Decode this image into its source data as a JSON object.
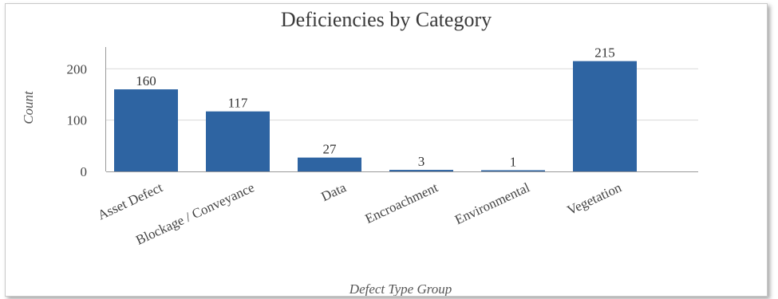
{
  "chart_data": {
    "type": "bar",
    "title": "Deficiencies by Category",
    "xlabel": "Defect Type Group",
    "ylabel": "Count",
    "categories": [
      "Asset Defect",
      "Blockage / Conveyance",
      "Data",
      "Encroachment",
      "Environmental",
      "Vegetation"
    ],
    "values": [
      160,
      117,
      27,
      3,
      1,
      215
    ],
    "data_labels": [
      "160",
      "117",
      "27",
      "3",
      "1",
      "215"
    ],
    "y_ticks": [
      "0",
      "100",
      "200"
    ],
    "ylim": [
      0,
      230
    ],
    "grid": true,
    "legend": "none",
    "colors": {
      "bar": "#2e64a2",
      "grid": "#d9d9d9",
      "axis": "#9a9a9a"
    }
  }
}
